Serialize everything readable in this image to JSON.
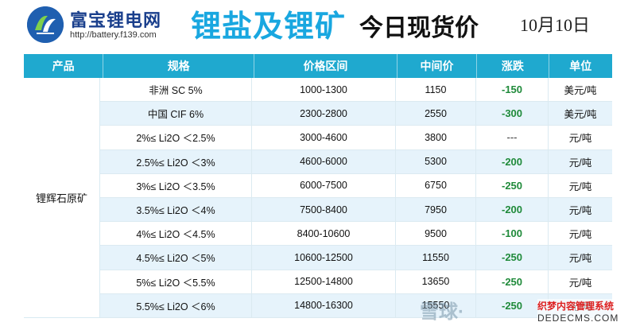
{
  "header": {
    "brand": "富宝锂电网",
    "url": "http://battery.f139.com",
    "title_colored": "锂盐及锂矿",
    "title_black": "今日现货价",
    "date": "10月10日"
  },
  "table": {
    "columns": [
      "产品",
      "规格",
      "价格区间",
      "中间价",
      "涨跌",
      "单位"
    ],
    "group_label": "锂辉石原矿",
    "rows": [
      {
        "spec": "非洲 SC 5%",
        "range": "1000-1300",
        "mid": "1150",
        "change": "-150",
        "unit": "美元/吨"
      },
      {
        "spec": "中国 CIF 6%",
        "range": "2300-2800",
        "mid": "2550",
        "change": "-300",
        "unit": "美元/吨"
      },
      {
        "spec": "2%≤ Li2O ＜2.5%",
        "range": "3000-4600",
        "mid": "3800",
        "change": "---",
        "unit": "元/吨"
      },
      {
        "spec": "2.5%≤ Li2O ＜3%",
        "range": "4600-6000",
        "mid": "5300",
        "change": "-200",
        "unit": "元/吨"
      },
      {
        "spec": "3%≤ Li2O ＜3.5%",
        "range": "6000-7500",
        "mid": "6750",
        "change": "-250",
        "unit": "元/吨"
      },
      {
        "spec": "3.5%≤ Li2O ＜4%",
        "range": "7500-8400",
        "mid": "7950",
        "change": "-200",
        "unit": "元/吨"
      },
      {
        "spec": "4%≤ Li2O ＜4.5%",
        "range": "8400-10600",
        "mid": "9500",
        "change": "-100",
        "unit": "元/吨"
      },
      {
        "spec": "4.5%≤ Li2O ＜5%",
        "range": "10600-12500",
        "mid": "11550",
        "change": "-250",
        "unit": "元/吨"
      },
      {
        "spec": "5%≤ Li2O ＜5.5%",
        "range": "12500-14800",
        "mid": "13650",
        "change": "-250",
        "unit": "元/吨"
      },
      {
        "spec": "5.5%≤ Li2O ＜6%",
        "range": "14800-16300",
        "mid": "15550",
        "change": "-250",
        "unit": "元/吨"
      }
    ]
  },
  "watermark": {
    "xueqiu": "雪球·",
    "cms_name": "织梦内容管理系统",
    "cms_domain": "DEDECMS.COM"
  },
  "colors": {
    "header_bg": "#1fa9cf",
    "title_blue": "#19a7e0",
    "change_green": "#1f8a3a",
    "row_stripe": "#e6f3fb"
  },
  "icons": {
    "logo": "fubao-logo-icon"
  }
}
